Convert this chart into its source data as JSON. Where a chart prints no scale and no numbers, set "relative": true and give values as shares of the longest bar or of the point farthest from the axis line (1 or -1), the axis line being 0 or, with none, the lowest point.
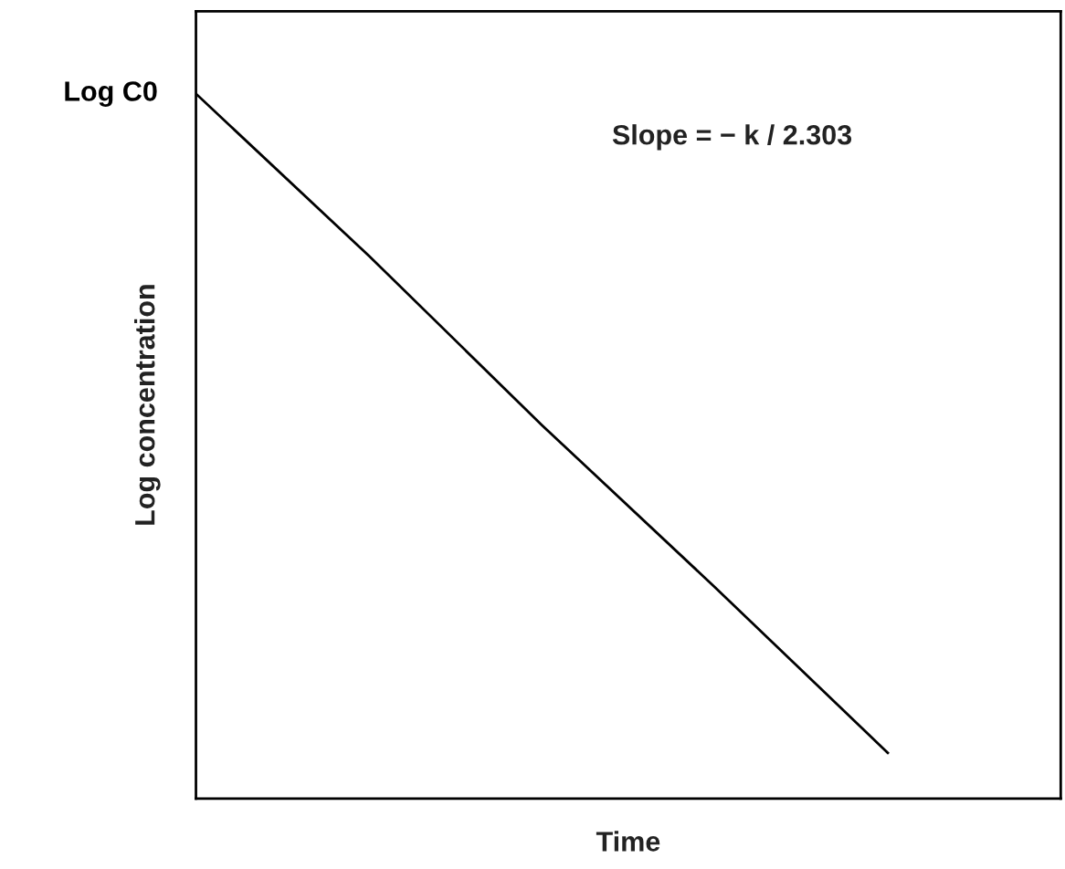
{
  "chart_data": {
    "type": "line",
    "relative": true,
    "xlabel": "Time",
    "ylabel": "Log concentration",
    "categories": [
      null,
      null,
      null,
      null,
      null,
      null
    ],
    "series": [
      {
        "color": "#000000",
        "values": [
          1,
          0.77,
          0.53,
          0.3,
          0.065,
          null
        ]
      }
    ],
    "annotations": [
      "Log C0",
      "Slope = − k / 2.303"
    ],
    "grid": false,
    "legend": false,
    "marker": "none",
    "line_style": "solid"
  }
}
